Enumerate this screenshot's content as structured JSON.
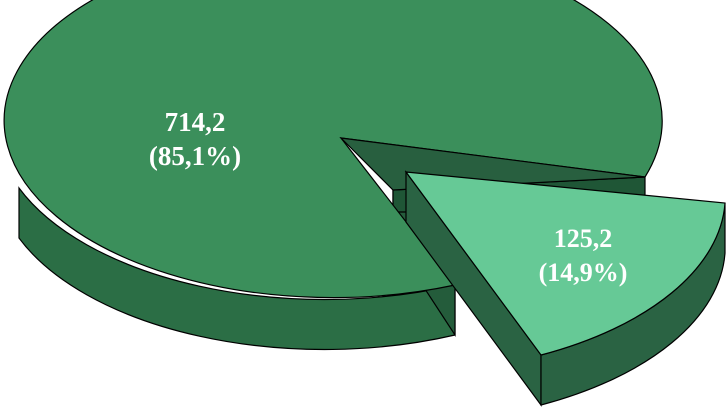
{
  "chart_data": {
    "type": "pie",
    "style": "3d-exploded",
    "slices": [
      {
        "value": "714,2",
        "percent": "(85,1%)",
        "numeric_value": 714.2,
        "color_top": "#3b8f5b",
        "color_side": "#2b6e45"
      },
      {
        "value": "125,2",
        "percent": "(14,9%)",
        "numeric_value": 125.2,
        "color_top": "#66c996",
        "color_side": "#2a6343"
      }
    ],
    "title": "",
    "legend": "none"
  }
}
